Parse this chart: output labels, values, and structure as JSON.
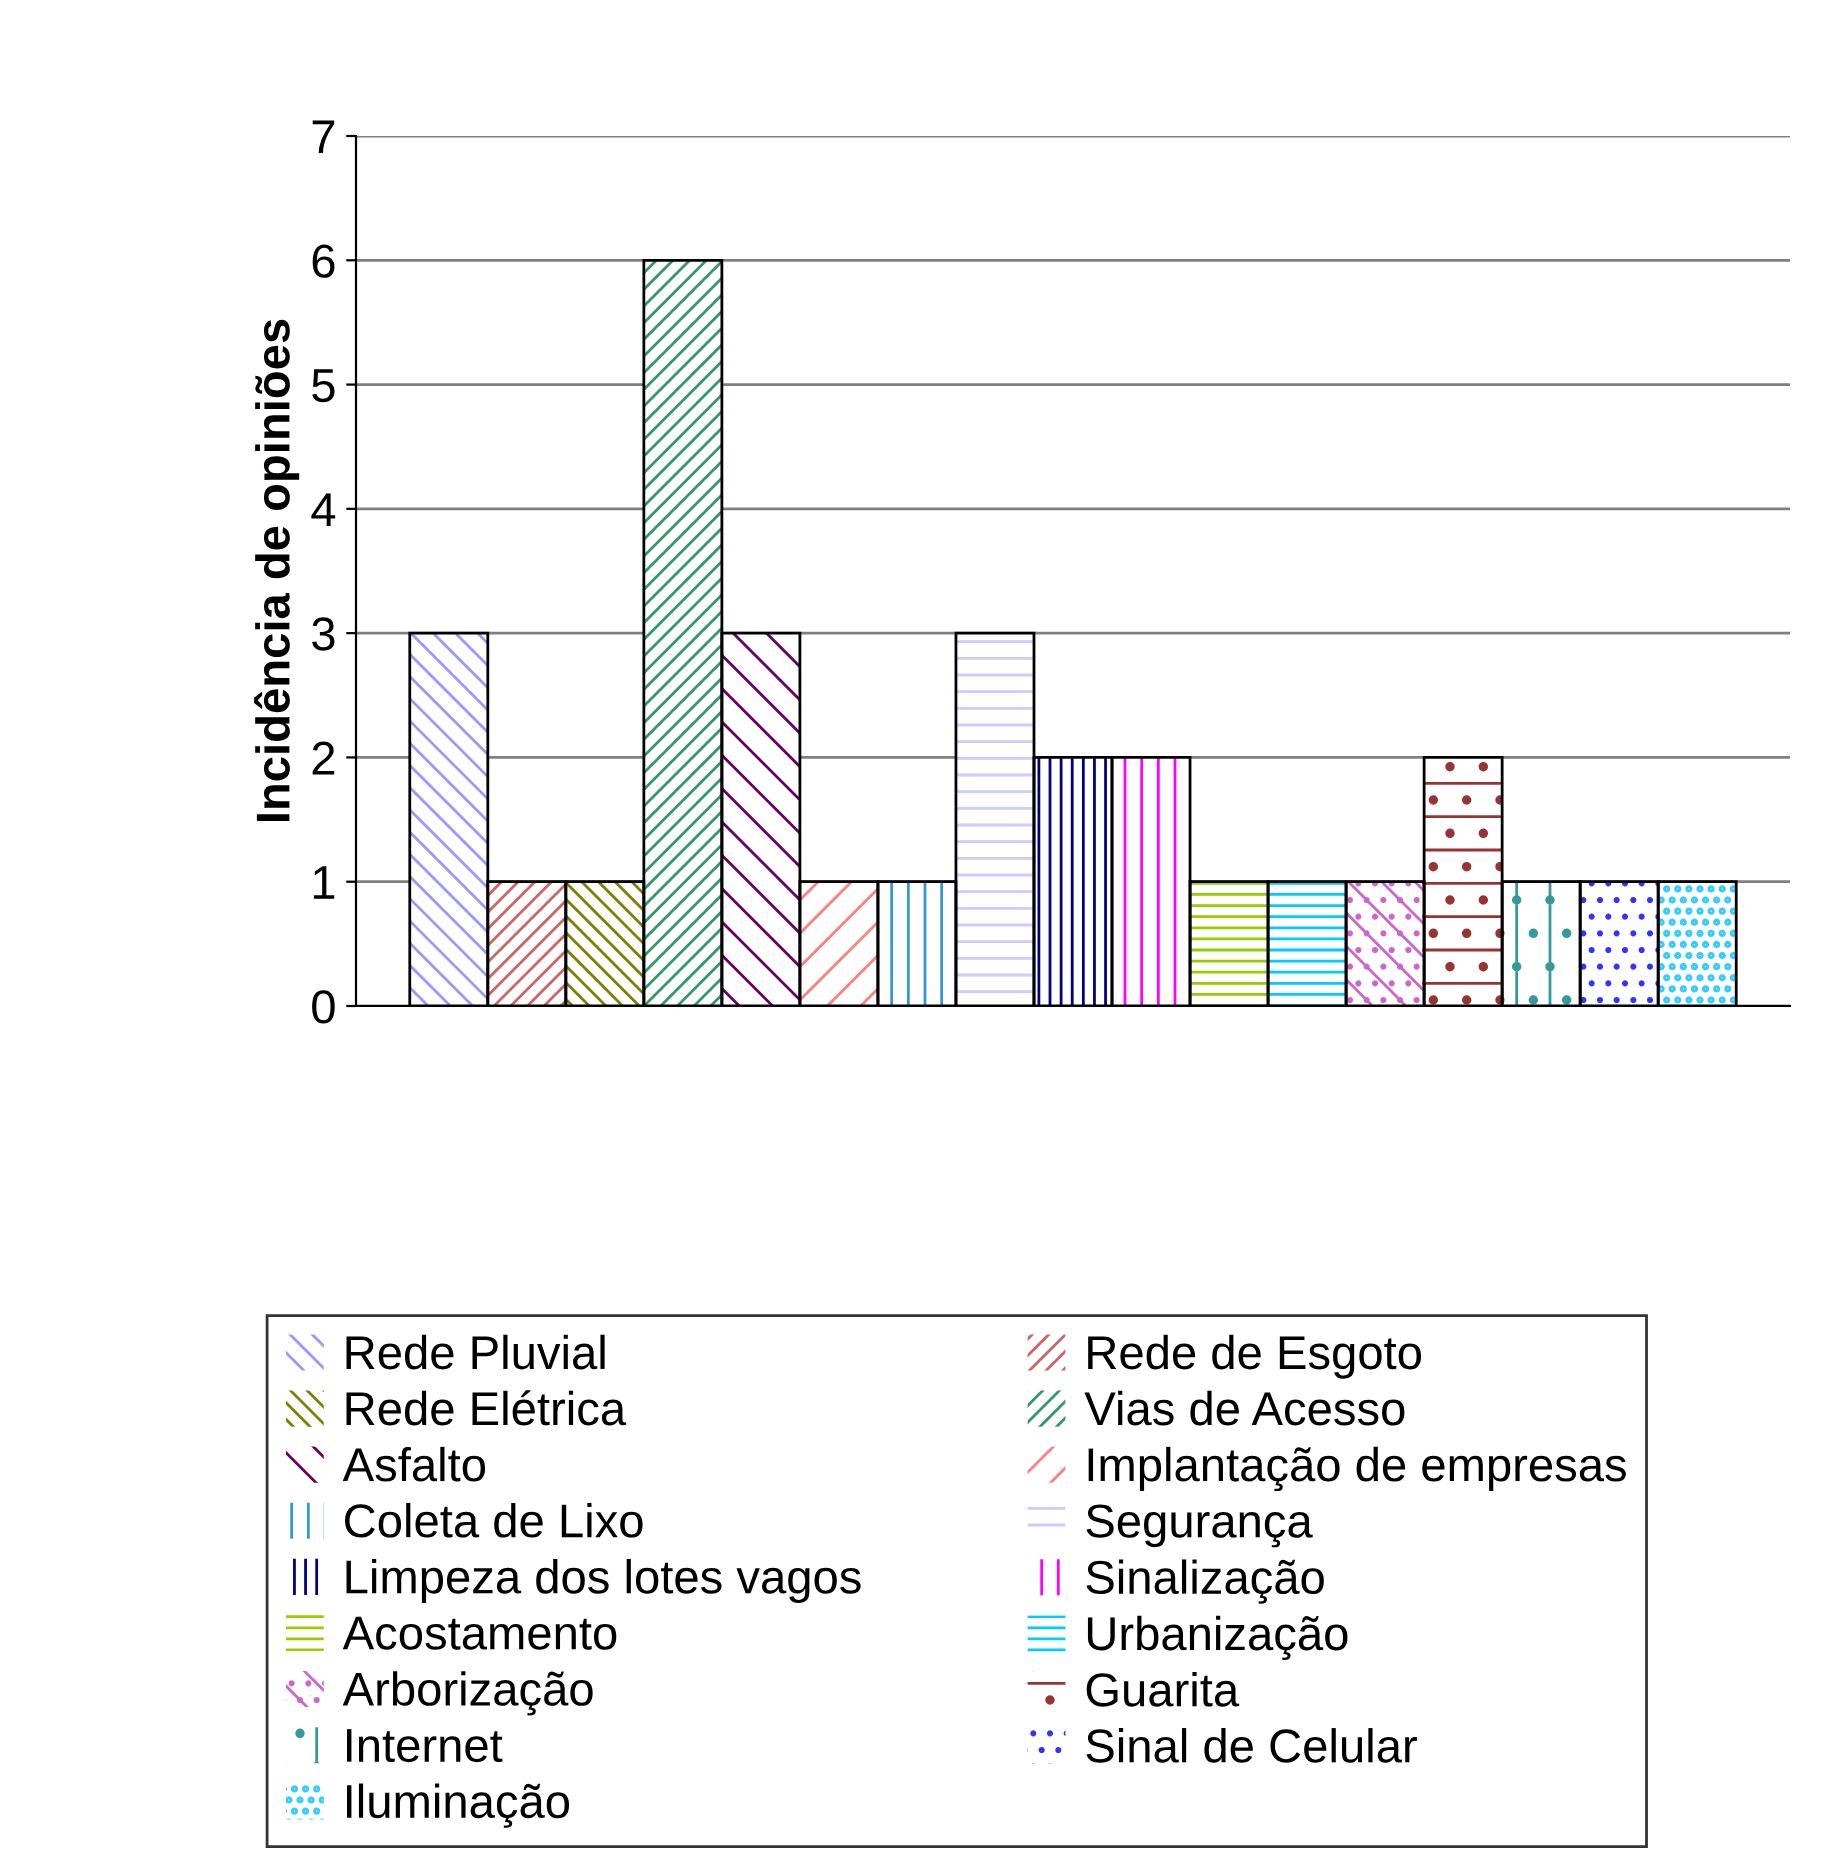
{
  "chart_data": {
    "type": "bar",
    "ylabel": "Incidência de opiniões",
    "categories": [
      null
    ],
    "series": [
      {
        "name": "Rede Pluvial",
        "color": "#9999ff",
        "values": [
          3
        ]
      },
      {
        "name": "Rede de Esgoto",
        "color": "#cc6666",
        "values": [
          1
        ]
      },
      {
        "name": "Rede Elétrica",
        "color": "#808000",
        "values": [
          1
        ]
      },
      {
        "name": "Vias de Acesso",
        "color": "#339966",
        "values": [
          6
        ]
      },
      {
        "name": "Asfalto",
        "color": "#660066",
        "values": [
          3
        ]
      },
      {
        "name": "Implantação de empresas",
        "color": "#ff8080",
        "values": [
          1
        ]
      },
      {
        "name": "Coleta de Lixo",
        "color": "#3399cc",
        "values": [
          1
        ]
      },
      {
        "name": "Segurança",
        "color": "#ccccff",
        "values": [
          3
        ]
      },
      {
        "name": "Limpeza dos lotes vagos",
        "color": "#000080",
        "values": [
          2
        ]
      },
      {
        "name": "Sinalização",
        "color": "#ff00ff",
        "values": [
          2
        ]
      },
      {
        "name": "Acostamento",
        "color": "#99cc00",
        "values": [
          1
        ]
      },
      {
        "name": "Urbanização",
        "color": "#00ccff",
        "values": [
          1
        ]
      },
      {
        "name": "Arborização",
        "color": "#cc66cc",
        "values": [
          1
        ]
      },
      {
        "name": "Guarita",
        "color": "#993333",
        "values": [
          2
        ]
      },
      {
        "name": "Internet",
        "color": "#339999",
        "values": [
          1
        ]
      },
      {
        "name": "Sinal de Celular",
        "color": "#3333ff",
        "values": [
          1
        ]
      },
      {
        "name": "Iluminação",
        "color": "#33ccff",
        "values": [
          1
        ]
      }
    ],
    "ylim": [
      0,
      7
    ],
    "yticks": [
      0,
      1,
      2,
      3,
      4,
      5,
      6,
      7
    ],
    "grid": "y",
    "legend": "bottom"
  }
}
